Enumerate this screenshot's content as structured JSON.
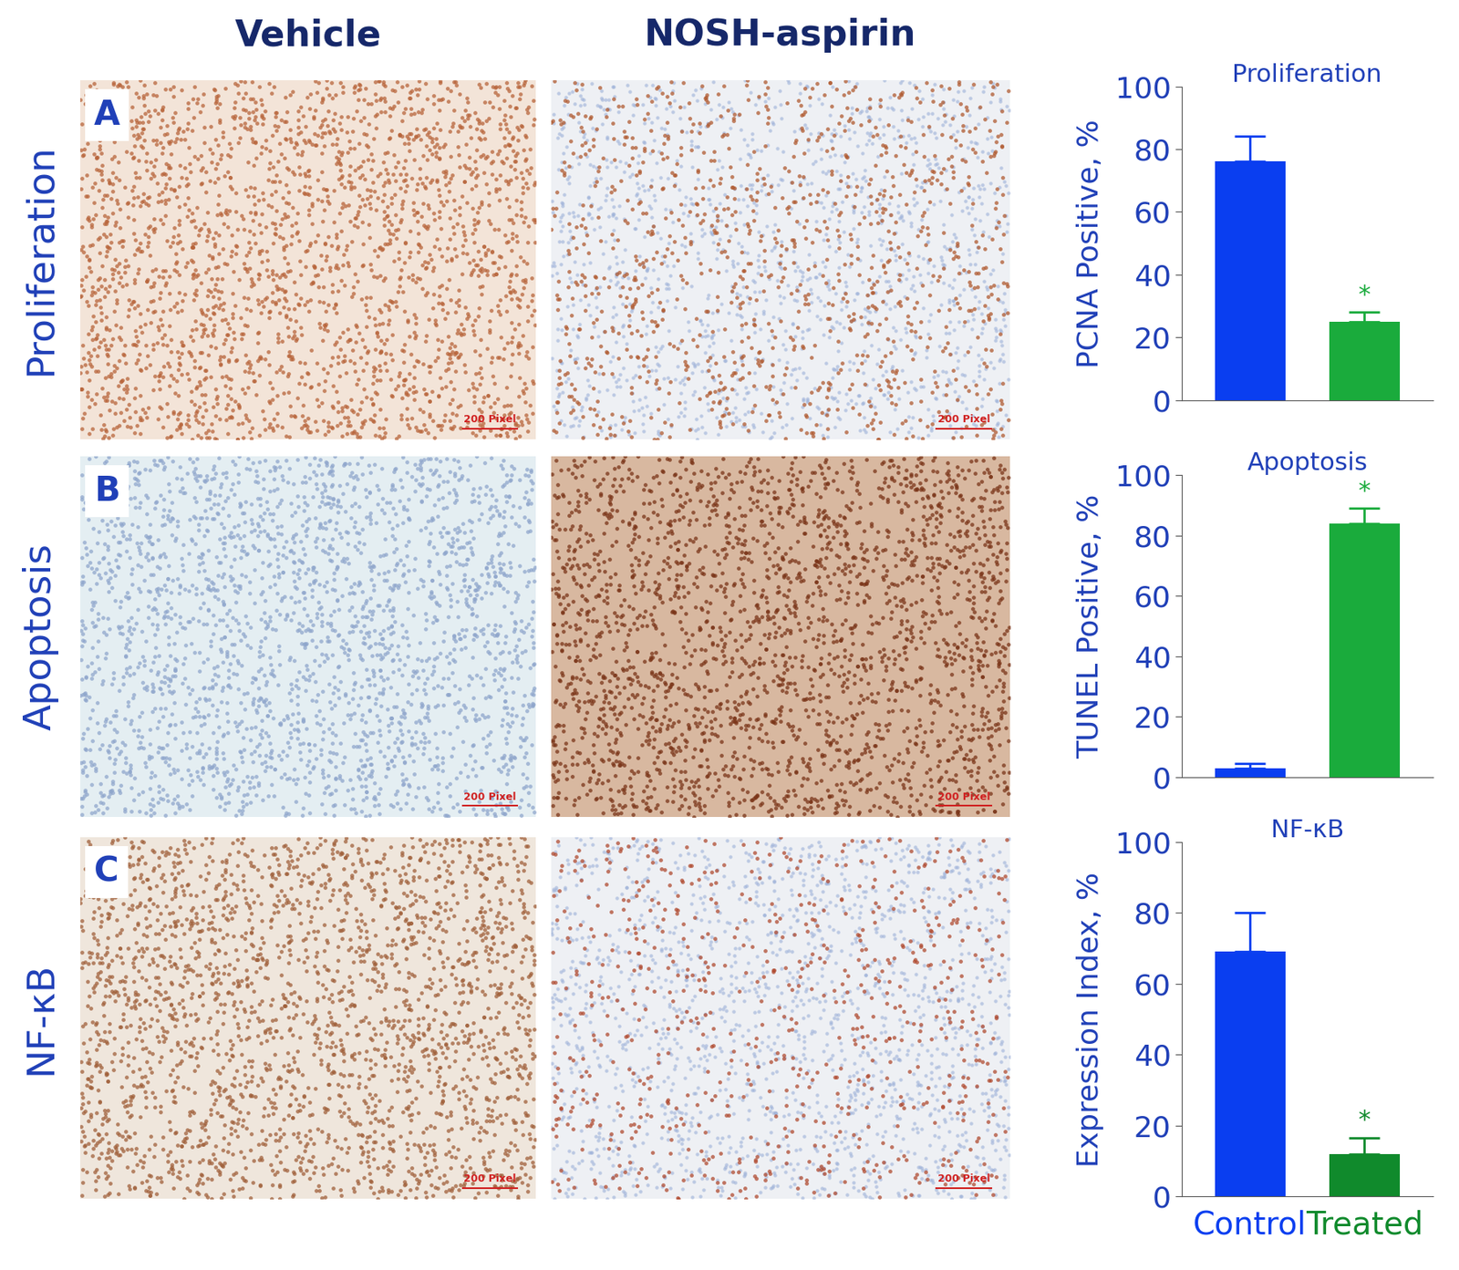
{
  "column_headers": [
    "Vehicle",
    "NOSH-aspirin"
  ],
  "panels": [
    {
      "letter": "A",
      "row_label": "Proliferation",
      "scale_bar": "200 Pixel"
    },
    {
      "letter": "B",
      "row_label": "Apoptosis",
      "scale_bar": "200 Pixel"
    },
    {
      "letter": "C",
      "row_label": "NF-κB",
      "scale_bar": "200 Pixel"
    }
  ],
  "chart_data": [
    {
      "type": "bar",
      "title": "Proliferation",
      "y_label": "PCNA Positive, %",
      "categories": [
        "Control",
        "Treated"
      ],
      "values": [
        76,
        25
      ],
      "errors": [
        8,
        3
      ],
      "colors": [
        "#0a3ef0",
        "#1aab3c"
      ],
      "annotations": [
        null,
        "*"
      ],
      "ylim": [
        0,
        100
      ],
      "yticks": [
        0,
        20,
        40,
        60,
        80,
        100
      ],
      "tick_labels": "y"
    },
    {
      "type": "bar",
      "title": "Apoptosis",
      "y_label": "TUNEL Positive, %",
      "categories": [
        "Control",
        "Treated"
      ],
      "values": [
        3,
        84
      ],
      "errors": [
        1.5,
        5
      ],
      "colors": [
        "#0a3ef0",
        "#1aab3c"
      ],
      "annotations": [
        null,
        "*"
      ],
      "ylim": [
        0,
        100
      ],
      "yticks": [
        0,
        20,
        40,
        60,
        80,
        100
      ],
      "tick_labels": "y"
    },
    {
      "type": "bar",
      "title": "NF-κB",
      "y_label": "Expression Index, %",
      "categories": [
        "Control",
        "Treated"
      ],
      "values": [
        69,
        12
      ],
      "errors": [
        11,
        4.5
      ],
      "colors": [
        "#0a3ef0",
        "#108a2c"
      ],
      "annotations": [
        null,
        "*"
      ],
      "ylim": [
        0,
        100
      ],
      "yticks": [
        0,
        20,
        40,
        60,
        80,
        100
      ]
    }
  ]
}
